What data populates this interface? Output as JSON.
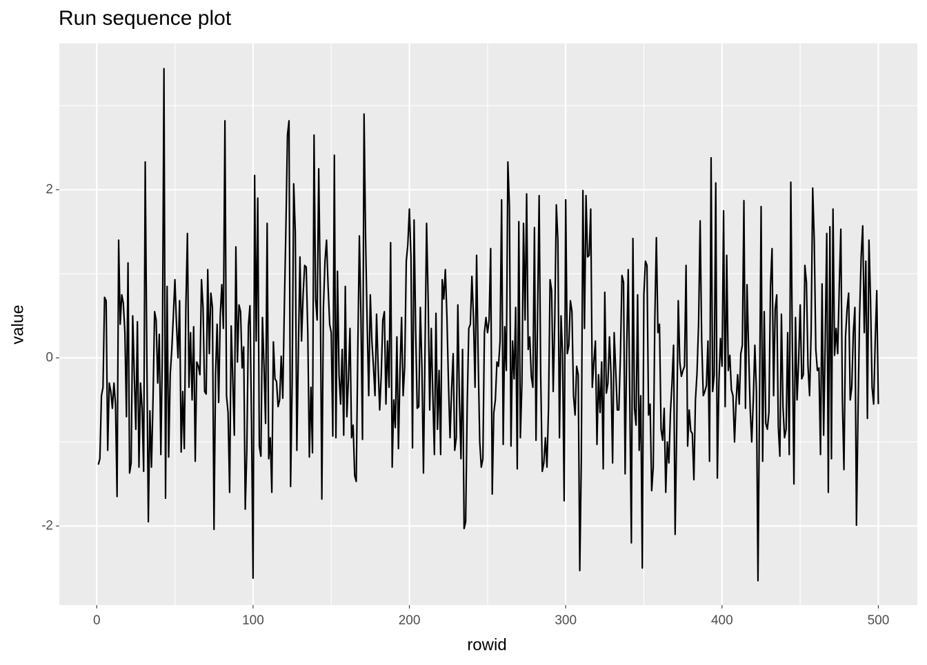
{
  "chart_data": {
    "type": "line",
    "title": "Run sequence plot",
    "x_label": "rowid",
    "y_label": "value",
    "x": [
      1,
      2,
      3,
      4,
      5,
      6,
      7,
      8,
      9,
      10,
      11,
      12,
      13,
      14,
      15,
      16,
      17,
      18,
      19,
      20,
      21,
      22,
      23,
      24,
      25,
      26,
      27,
      28,
      29,
      30,
      31,
      32,
      33,
      34,
      35,
      36,
      37,
      38,
      39,
      40,
      41,
      42,
      43,
      44,
      45,
      46,
      47,
      48,
      49,
      50,
      51,
      52,
      53,
      54,
      55,
      56,
      57,
      58,
      59,
      60,
      61,
      62,
      63,
      64,
      65,
      66,
      67,
      68,
      69,
      70,
      71,
      72,
      73,
      74,
      75,
      76,
      77,
      78,
      79,
      80,
      81,
      82,
      83,
      84,
      85,
      86,
      87,
      88,
      89,
      90,
      91,
      92,
      93,
      94,
      95,
      96,
      97,
      98,
      99,
      100,
      101,
      102,
      103,
      104,
      105,
      106,
      107,
      108,
      109,
      110,
      111,
      112,
      113,
      114,
      115,
      116,
      117,
      118,
      119,
      120,
      121,
      122,
      123,
      124,
      125,
      126,
      127,
      128,
      129,
      130,
      131,
      132,
      133,
      134,
      135,
      136,
      137,
      138,
      139,
      140,
      141,
      142,
      143,
      144,
      145,
      146,
      147,
      148,
      149,
      150,
      151,
      152,
      153,
      154,
      155,
      156,
      157,
      158,
      159,
      160,
      161,
      162,
      163,
      164,
      165,
      166,
      167,
      168,
      169,
      170,
      171,
      172,
      173,
      174,
      175,
      176,
      177,
      178,
      179,
      180,
      181,
      182,
      183,
      184,
      185,
      186,
      187,
      188,
      189,
      190,
      191,
      192,
      193,
      194,
      195,
      196,
      197,
      198,
      199,
      200,
      201,
      202,
      203,
      204,
      205,
      206,
      207,
      208,
      209,
      210,
      211,
      212,
      213,
      214,
      215,
      216,
      217,
      218,
      219,
      220,
      221,
      222,
      223,
      224,
      225,
      226,
      227,
      228,
      229,
      230,
      231,
      232,
      233,
      234,
      235,
      236,
      237,
      238,
      239,
      240,
      241,
      242,
      243,
      244,
      245,
      246,
      247,
      248,
      249,
      250,
      251,
      252,
      253,
      254,
      255,
      256,
      257,
      258,
      259,
      260,
      261,
      262,
      263,
      264,
      265,
      266,
      267,
      268,
      269,
      270,
      271,
      272,
      273,
      274,
      275,
      276,
      277,
      278,
      279,
      280,
      281,
      282,
      283,
      284,
      285,
      286,
      287,
      288,
      289,
      290,
      291,
      292,
      293,
      294,
      295,
      296,
      297,
      298,
      299,
      300,
      301,
      302,
      303,
      304,
      305,
      306,
      307,
      308,
      309,
      310,
      311,
      312,
      313,
      314,
      315,
      316,
      317,
      318,
      319,
      320,
      321,
      322,
      323,
      324,
      325,
      326,
      327,
      328,
      329,
      330,
      331,
      332,
      333,
      334,
      335,
      336,
      337,
      338,
      339,
      340,
      341,
      342,
      343,
      344,
      345,
      346,
      347,
      348,
      349,
      350,
      351,
      352,
      353,
      354,
      355,
      356,
      357,
      358,
      359,
      360,
      361,
      362,
      363,
      364,
      365,
      366,
      367,
      368,
      369,
      370,
      371,
      372,
      373,
      374,
      375,
      376,
      377,
      378,
      379,
      380,
      381,
      382,
      383,
      384,
      385,
      386,
      387,
      388,
      389,
      390,
      391,
      392,
      393,
      394,
      395,
      396,
      397,
      398,
      399,
      400,
      401,
      402,
      403,
      404,
      405,
      406,
      407,
      408,
      409,
      410,
      411,
      412,
      413,
      414,
      415,
      416,
      417,
      418,
      419,
      420,
      421,
      422,
      423,
      424,
      425,
      426,
      427,
      428,
      429,
      430,
      431,
      432,
      433,
      434,
      435,
      436,
      437,
      438,
      439,
      440,
      441,
      442,
      443,
      444,
      445,
      446,
      447,
      448,
      449,
      450,
      451,
      452,
      453,
      454,
      455,
      456,
      457,
      458,
      459,
      460,
      461,
      462,
      463,
      464,
      465,
      466,
      467,
      468,
      469,
      470,
      471,
      472,
      473,
      474,
      475,
      476,
      477,
      478,
      479,
      480,
      481,
      482,
      483,
      484,
      485,
      486,
      487,
      488,
      489,
      490,
      491,
      492,
      493,
      494,
      495,
      496,
      497,
      498,
      499,
      500
    ],
    "series": [
      {
        "color": "#000000",
        "values": [
          -1.27,
          -1.2,
          -0.45,
          -0.35,
          0.72,
          0.68,
          -1.1,
          -0.3,
          -0.4,
          -0.6,
          -0.3,
          -0.55,
          -1.65,
          1.4,
          0.4,
          0.75,
          0.65,
          0.3,
          -0.7,
          1.13,
          -1.37,
          -1.25,
          0.5,
          -0.2,
          -0.85,
          0.43,
          -1.3,
          -0.3,
          -0.6,
          -1.35,
          2.33,
          0.1,
          -1.95,
          -0.63,
          -1.3,
          -0.5,
          0.55,
          0.45,
          -0.3,
          0.28,
          -1.15,
          0.1,
          3.44,
          -1.67,
          0.85,
          -1.18,
          -0.2,
          0.1,
          0.5,
          0.93,
          0.4,
          0,
          0.68,
          -1.12,
          -0.4,
          -1.08,
          0.6,
          1.48,
          -0.35,
          0.3,
          -0.5,
          0.37,
          -1.23,
          -0.05,
          -0.1,
          -0.2,
          0.93,
          0.6,
          -0.4,
          -0.43,
          1.05,
          0.05,
          0.77,
          0.6,
          -2.04,
          -0.2,
          0.4,
          -0.53,
          0.5,
          0.87,
          0.35,
          2.82,
          -0.45,
          -0.65,
          -1.6,
          0.38,
          -0.25,
          -0.92,
          1.32,
          -0.05,
          0.63,
          0.55,
          -0.12,
          0.13,
          -1.8,
          -1.1,
          0.38,
          0.62,
          -0.75,
          -2.62,
          2.17,
          0.2,
          1.9,
          -1.05,
          -1.17,
          0.48,
          -0.1,
          -0.78,
          1.6,
          -1.2,
          -0.95,
          -1.6,
          0.19,
          -0.25,
          -0.28,
          -0.58,
          -0.5,
          0.02,
          -0.48,
          0.6,
          1.55,
          2.65,
          2.82,
          -1.53,
          -0.3,
          2.07,
          1.5,
          -1.1,
          0.1,
          1.2,
          0.2,
          0.75,
          1.1,
          1.08,
          0.3,
          -1.18,
          -0.35,
          -1.13,
          2.65,
          0.7,
          0.45,
          2.25,
          0.8,
          -1.68,
          0.6,
          1.15,
          1.4,
          0.85,
          0.4,
          0.3,
          -0.93,
          2.41,
          -0.95,
          1.03,
          -0.2,
          -0.55,
          0.1,
          -0.92,
          0.85,
          -0.7,
          -0.25,
          0.35,
          -0.95,
          -0.8,
          -1.4,
          -1.47,
          0.1,
          1.45,
          0.5,
          -0.97,
          2.9,
          1.4,
          0.4,
          -0.45,
          0.75,
          0.2,
          -0.1,
          -0.45,
          0.52,
          -0.1,
          -0.62,
          -0.2,
          0.45,
          0.55,
          -0.55,
          0.2,
          -0.35,
          1.37,
          -1.3,
          -0.5,
          -0.83,
          0.25,
          -1.08,
          -0.15,
          0.48,
          -0.45,
          -0.1,
          1.15,
          1.35,
          1.77,
          1.2,
          -1.07,
          1.64,
          0.35,
          -0.6,
          -0.58,
          0.6,
          -0.1,
          -1.37,
          0.1,
          1.6,
          0.7,
          -0.62,
          0.35,
          -0.45,
          -1.15,
          0.53,
          -0.85,
          -0.15,
          -1.15,
          0.93,
          0.7,
          1.05,
          0.5,
          -0.3,
          -0.95,
          -0.38,
          0.05,
          -1.1,
          -0.95,
          0.63,
          -0.5,
          -1.2,
          0.1,
          -2.03,
          -1.95,
          -0.55,
          0.35,
          0.4,
          0.97,
          0.48,
          -0.35,
          1.22,
          0,
          -1.0,
          -1.3,
          -1.2,
          0.3,
          0.48,
          0.3,
          0.45,
          1.3,
          -1.62,
          -0.65,
          -0.5,
          -0.05,
          -0.1,
          0.2,
          1.88,
          -1.03,
          0.37,
          -0.15,
          2.33,
          1.8,
          -1.05,
          0.2,
          -0.25,
          0.6,
          -1.32,
          1.62,
          -0.95,
          -0.3,
          1.6,
          0.45,
          1.95,
          0.1,
          0.25,
          -0.22,
          -0.35,
          1.55,
          -0.98,
          0.5,
          1.93,
          -0.2,
          -1.35,
          -1.25,
          -0.95,
          -1.3,
          -0.6,
          0.93,
          0.8,
          -0.4,
          0.45,
          1.82,
          1.4,
          -0.95,
          0.5,
          0.05,
          -1.7,
          1.88,
          0.05,
          0.15,
          0.68,
          0.55,
          -0.45,
          -0.68,
          -0.1,
          -0.2,
          -2.53,
          -1.2,
          1.99,
          0.35,
          1.93,
          1.2,
          1.22,
          1.77,
          -0.35,
          -0.05,
          0.2,
          -1.03,
          -0.2,
          -0.65,
          -0.05,
          -1.32,
          0.78,
          -0.42,
          -0.3,
          0.25,
          -0.2,
          -1.25,
          0.3,
          -0.15,
          -0.62,
          -0.62,
          0.03,
          0.98,
          0.9,
          -1.38,
          0.1,
          1.05,
          -0.5,
          -2.2,
          1.42,
          -0.6,
          -0.8,
          0.75,
          -1.1,
          -0.45,
          -2.5,
          0.75,
          1.15,
          1.1,
          -0.68,
          -0.55,
          -1.58,
          -1.3,
          0.45,
          1.43,
          0.3,
          0.4,
          -0.85,
          -0.98,
          -0.6,
          -1.6,
          -1.0,
          -1.25,
          -0.65,
          -0.3,
          0.15,
          -2.1,
          -0.85,
          0.68,
          -0.05,
          -0.22,
          -0.15,
          -0.1,
          1.1,
          -1.05,
          -0.62,
          -0.87,
          -0.9,
          -1.45,
          -0.5,
          -0.18,
          0.4,
          1.63,
          0.2,
          -0.45,
          -0.4,
          -0.33,
          0.2,
          -1.23,
          2.38,
          -0.4,
          -0.2,
          2.08,
          -1.43,
          -0.3,
          0.23,
          -0.1,
          1.75,
          -0.58,
          1.22,
          -0.15,
          0.03,
          -0.38,
          -0.45,
          -1.0,
          -0.52,
          -0.2,
          -0.55,
          0.05,
          0.15,
          1.87,
          -0.6,
          0.87,
          0.1,
          -0.6,
          -1.0,
          -0.5,
          0.15,
          -0.4,
          -2.65,
          -0.5,
          1.8,
          -1.23,
          0.55,
          -0.78,
          -0.85,
          -0.65,
          0.85,
          1.3,
          -0.45,
          0.58,
          0.75,
          -0.82,
          -1.17,
          0.52,
          -0.58,
          -0.95,
          -0.85,
          0.3,
          -1.15,
          2.09,
          0.15,
          -1.5,
          0.48,
          -0.5,
          -0.05,
          0.63,
          -0.25,
          -0.2,
          1.1,
          0.9,
          -0.1,
          -0.45,
          0.3,
          2.02,
          1.4,
          0.1,
          -0.15,
          -0.12,
          -1.15,
          0.88,
          -0.92,
          0.2,
          1.48,
          -1.6,
          1.56,
          -1.2,
          1.77,
          0.03,
          0.35,
          0.05,
          0.85,
          1.53,
          -0.5,
          -1.33,
          0.25,
          0.58,
          0.77,
          -0.5,
          -0.35,
          0.3,
          0.6,
          -1.99,
          -0.65,
          0.5,
          1.2,
          1.57,
          0.3,
          1.15,
          -0.72,
          1.4,
          0.7,
          -0.35,
          -0.55,
          0.2,
          0.8,
          -0.55
        ]
      }
    ],
    "xlim": [
      -23.95,
      524.95
    ],
    "ylim": [
      -2.94,
      3.74
    ],
    "xticks": [
      0,
      100,
      200,
      300,
      400,
      500
    ],
    "yticks": [
      -2,
      0,
      2
    ],
    "xminor": [
      50,
      150,
      250,
      350,
      450
    ],
    "yminor": [
      -1,
      1,
      3
    ],
    "grid": true,
    "panel_color": "#ebebeb"
  }
}
